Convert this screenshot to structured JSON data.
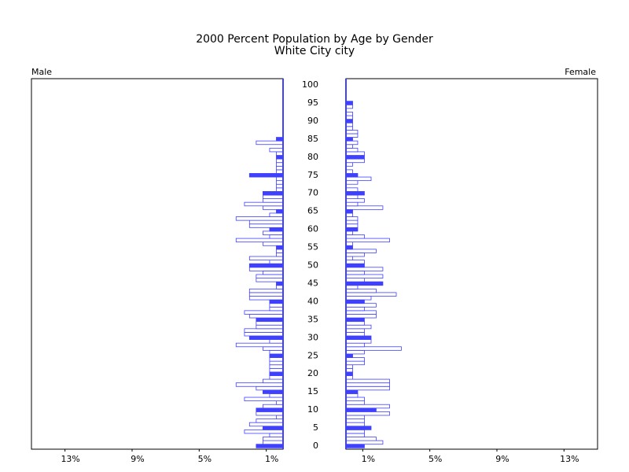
{
  "chart_data": {
    "type": "pyramid",
    "title": "2000 Percent Population by Age by Gender",
    "subtitle": "White City city",
    "categories": [
      0,
      null,
      null,
      null,
      null,
      5,
      null,
      null,
      null,
      null,
      10,
      null,
      null,
      null,
      null,
      15,
      null,
      null,
      null,
      null,
      20,
      null,
      null,
      null,
      null,
      25,
      null,
      null,
      null,
      null,
      30,
      null,
      null,
      null,
      null,
      35,
      null,
      null,
      null,
      null,
      40,
      null,
      null,
      null,
      null,
      45,
      null,
      null,
      null,
      null,
      50,
      null,
      null,
      null,
      null,
      55,
      null,
      null,
      null,
      null,
      60,
      null,
      null,
      null,
      null,
      65,
      null,
      null,
      null,
      null,
      70,
      null,
      null,
      null,
      null,
      75,
      null,
      null,
      null,
      null,
      80,
      null,
      null,
      null,
      null,
      85,
      null,
      null,
      null,
      null,
      90,
      null,
      null,
      null,
      null,
      95,
      null,
      null,
      null,
      null,
      100
    ],
    "series": [
      {
        "name": "Male",
        "color": "#4040ff",
        "values": [
          1.6,
          1.2,
          1.2,
          0.8,
          2.3,
          1.2,
          2.0,
          1.6,
          0.4,
          1.6,
          1.6,
          1.2,
          0.4,
          2.3,
          0.8,
          1.2,
          1.6,
          2.8,
          1.2,
          0.8,
          0.8,
          0.8,
          0.8,
          0.8,
          0.8,
          0.8,
          0.8,
          1.2,
          2.8,
          0.8,
          2.0,
          2.3,
          2.3,
          1.6,
          1.6,
          1.6,
          2.0,
          2.3,
          0.8,
          0.8,
          0.8,
          2.0,
          2.0,
          2.0,
          0.4,
          0.4,
          1.6,
          1.6,
          1.2,
          2.0,
          2.0,
          0.8,
          2.0,
          0.4,
          0.4,
          0.4,
          1.2,
          2.8,
          0.8,
          1.2,
          0.8,
          2.0,
          2.0,
          2.8,
          0.8,
          0.4,
          1.2,
          2.3,
          1.2,
          1.2,
          1.2,
          0.4,
          0.4,
          0.4,
          0.4,
          2.0,
          0.4,
          0.4,
          0.4,
          0.4,
          0.4,
          0.4,
          0.8,
          0,
          1.6,
          0.4,
          0,
          0,
          0,
          0,
          0,
          0,
          0,
          0,
          0,
          0,
          0,
          0,
          0,
          0,
          0
        ]
      },
      {
        "name": "Female",
        "color": "#4040ff",
        "values": [
          1.1,
          2.2,
          1.8,
          1.1,
          1.1,
          1.5,
          1.1,
          1.1,
          1.1,
          2.6,
          1.8,
          2.6,
          1.1,
          1.1,
          0.7,
          0.7,
          2.6,
          2.6,
          2.6,
          0.4,
          0.4,
          0.4,
          0.4,
          1.1,
          1.1,
          0.4,
          1.1,
          3.3,
          1.1,
          1.5,
          1.5,
          1.1,
          1.1,
          1.5,
          1.1,
          1.1,
          1.8,
          1.8,
          1.1,
          1.8,
          1.1,
          1.5,
          3.0,
          1.8,
          0.7,
          2.2,
          1.1,
          2.2,
          1.1,
          2.2,
          1.1,
          1.1,
          0.4,
          1.1,
          1.8,
          0.4,
          0.4,
          2.6,
          1.1,
          0.4,
          0.7,
          0.7,
          0.7,
          0.7,
          0.4,
          0.4,
          2.2,
          0.7,
          1.1,
          0.7,
          1.1,
          0.7,
          0,
          0.7,
          1.5,
          0.7,
          0.4,
          0,
          0.4,
          1.1,
          1.1,
          1.1,
          0.7,
          0.4,
          0.7,
          0.4,
          0.7,
          0.7,
          0.4,
          0.4,
          0.4,
          0.4,
          0.4,
          0,
          0.4,
          0.4,
          0,
          0,
          0,
          0,
          0
        ]
      }
    ],
    "xlim": [
      0,
      15
    ],
    "xticks": [
      {
        "value": 1,
        "label": "1%"
      },
      {
        "value": 5,
        "label": "5%"
      },
      {
        "value": 9,
        "label": "9%"
      },
      {
        "value": 13,
        "label": "13%"
      }
    ]
  }
}
